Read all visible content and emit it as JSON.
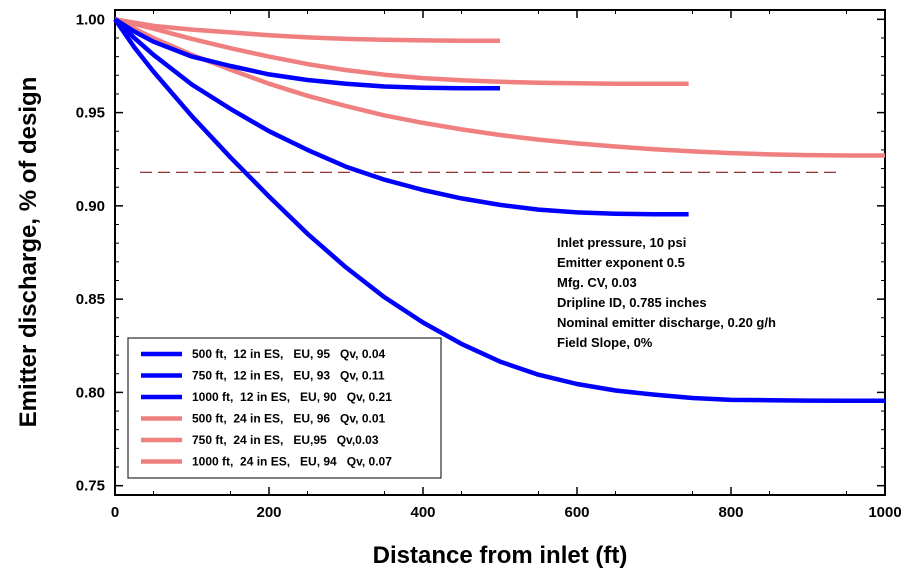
{
  "chart_data": {
    "type": "line",
    "xlabel": "Distance from inlet (ft)",
    "ylabel": "Emitter discharge, % of design",
    "xlim": [
      0,
      1000
    ],
    "ylim": [
      0.745,
      1.005
    ],
    "xticks": [
      0,
      200,
      400,
      600,
      800,
      1000
    ],
    "xtick_labels": [
      "0",
      "200",
      "400",
      "600",
      "800",
      "1000"
    ],
    "yticks": [
      0.75,
      0.8,
      0.85,
      0.9,
      0.95,
      1.0
    ],
    "ytick_labels": [
      "0.75",
      "0.80",
      "0.85",
      "0.90",
      "0.95",
      "1.00"
    ],
    "grid": false,
    "legend_position": "bottom-left",
    "reference_line": {
      "y": 0.918,
      "x": [
        0,
        940
      ],
      "style": "dashed",
      "color": "#8b1a1a"
    },
    "annotations": [
      "Inlet pressure, 10 psi",
      "Emitter exponent 0.5",
      "Mfg. CV, 0.03",
      "Dripline ID, 0.785 inches",
      "Nominal emitter discharge, 0.20 g/h",
      "Field Slope, 0%"
    ],
    "series": [
      {
        "name": "500 ft,  12 in ES,   EU, 95   Qv, 0.04",
        "color": "#0000ff",
        "x": [
          0,
          25,
          50,
          100,
          150,
          200,
          250,
          300,
          350,
          400,
          450,
          500
        ],
        "y": [
          1.0,
          0.9935,
          0.988,
          0.98,
          0.975,
          0.9705,
          0.9675,
          0.9655,
          0.964,
          0.9633,
          0.963,
          0.963
        ]
      },
      {
        "name": "750 ft,  12 in ES,   EU, 93   Qv, 0.11",
        "color": "#0000ff",
        "x": [
          0,
          25,
          50,
          100,
          150,
          200,
          250,
          300,
          350,
          400,
          450,
          500,
          550,
          600,
          650,
          700,
          745
        ],
        "y": [
          1.0,
          0.99,
          0.981,
          0.965,
          0.952,
          0.94,
          0.93,
          0.921,
          0.914,
          0.9085,
          0.904,
          0.9005,
          0.898,
          0.8965,
          0.8958,
          0.8955,
          0.8955
        ]
      },
      {
        "name": "1000 ft,  12 in ES,   EU, 90   Qv, 0.21",
        "color": "#0000ff",
        "x": [
          0,
          25,
          50,
          100,
          150,
          200,
          250,
          300,
          350,
          400,
          450,
          500,
          550,
          600,
          650,
          700,
          750,
          800,
          850,
          900,
          950,
          1000
        ],
        "y": [
          1.0,
          0.985,
          0.972,
          0.948,
          0.926,
          0.905,
          0.885,
          0.867,
          0.851,
          0.8375,
          0.826,
          0.8165,
          0.8095,
          0.8045,
          0.801,
          0.7988,
          0.797,
          0.796,
          0.7958,
          0.7956,
          0.7955,
          0.7955
        ]
      },
      {
        "name": "500 ft,  24 in ES,   EU, 96   Qv, 0.01",
        "color": "#f08080",
        "x": [
          0,
          50,
          100,
          150,
          200,
          250,
          300,
          350,
          400,
          450,
          500
        ],
        "y": [
          1.0,
          0.9965,
          0.9945,
          0.993,
          0.9915,
          0.9903,
          0.9895,
          0.989,
          0.9887,
          0.9885,
          0.9885
        ]
      },
      {
        "name": "750 ft,  24 in ES,   EU,95   Qv,0.03",
        "color": "#f08080",
        "x": [
          0,
          50,
          100,
          150,
          200,
          250,
          300,
          350,
          400,
          450,
          500,
          550,
          600,
          650,
          700,
          745
        ],
        "y": [
          1.0,
          0.995,
          0.9895,
          0.9845,
          0.98,
          0.976,
          0.9728,
          0.9703,
          0.9685,
          0.9673,
          0.9665,
          0.966,
          0.9657,
          0.9655,
          0.9655,
          0.9655
        ]
      },
      {
        "name": "1000 ft,  24 in ES,   EU, 94   Qv, 0.07",
        "color": "#f08080",
        "x": [
          0,
          50,
          100,
          150,
          200,
          250,
          300,
          350,
          400,
          450,
          500,
          550,
          600,
          650,
          700,
          750,
          800,
          850,
          900,
          950,
          1000
        ],
        "y": [
          1.0,
          0.99,
          0.981,
          0.973,
          0.9655,
          0.959,
          0.9535,
          0.9485,
          0.9445,
          0.941,
          0.938,
          0.9355,
          0.9335,
          0.9318,
          0.9303,
          0.9292,
          0.9283,
          0.9276,
          0.9272,
          0.927,
          0.927
        ]
      }
    ]
  }
}
